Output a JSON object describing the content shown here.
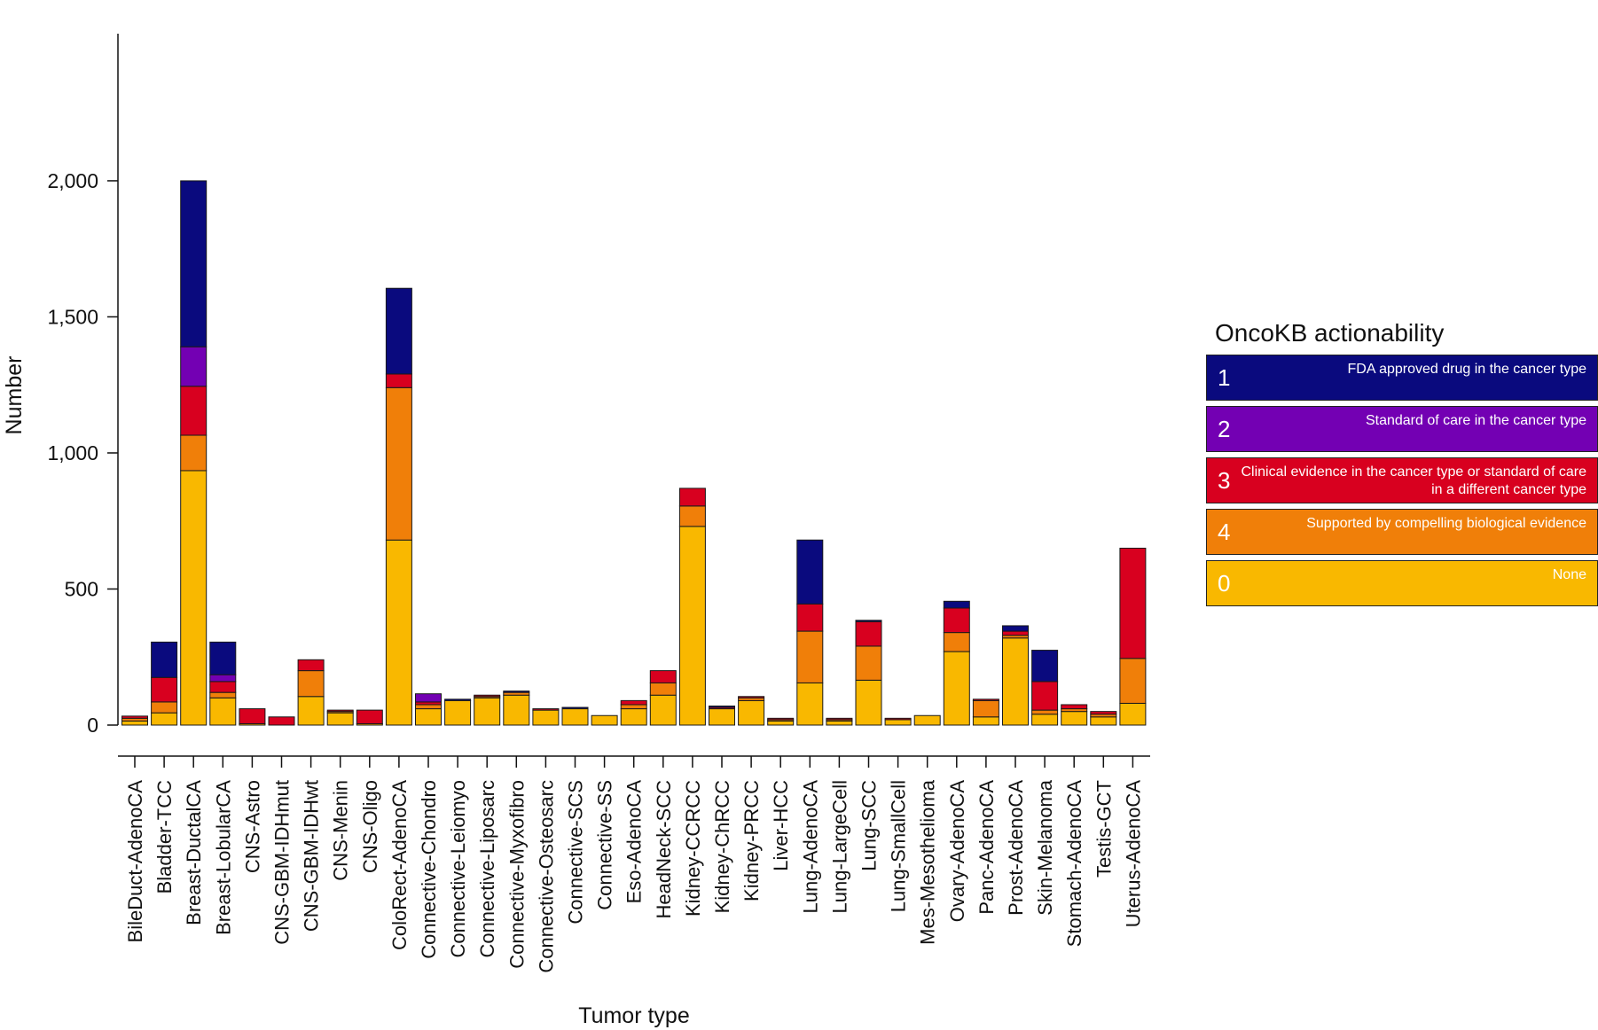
{
  "chart_data": {
    "type": "bar",
    "stacked": true,
    "title": "",
    "xlabel": "Tumor type",
    "ylabel": "Number",
    "ylim": [
      0,
      2420
    ],
    "yticks": [
      0,
      500,
      1000,
      1500,
      2000
    ],
    "ytick_labels": [
      "0",
      "500",
      "1,000",
      "1,500",
      "2,000"
    ],
    "categories": [
      "BileDuct-AdenoCA",
      "Bladder-TCC",
      "Breast-DuctalCA",
      "Breast-LobularCA",
      "CNS-Astro",
      "CNS-GBM-IDHmut",
      "CNS-GBM-IDHwt",
      "CNS-Menin",
      "CNS-Oligo",
      "ColoRect-AdenoCA",
      "Connective-Chondro",
      "Connective-Leiomyo",
      "Connective-Liposarc",
      "Connective-Myxofibro",
      "Connective-Osteosarc",
      "Connective-SCS",
      "Connective-SS",
      "Eso-AdenoCA",
      "HeadNeck-SCC",
      "Kidney-CCRCC",
      "Kidney-ChRCC",
      "Kidney-PRCC",
      "Liver-HCC",
      "Lung-AdenoCA",
      "Lung-LargeCell",
      "Lung-SCC",
      "Lung-SmallCell",
      "Mes-Mesothelioma",
      "Ovary-AdenoCA",
      "Panc-AdenoCA",
      "Prost-AdenoCA",
      "Skin-Melanoma",
      "Stomach-AdenoCA",
      "Testis-GCT",
      "Uterus-AdenoCA"
    ],
    "series": [
      {
        "name": "0",
        "color": "#f9b800",
        "values": [
          15,
          45,
          935,
          100,
          5,
          0,
          105,
          45,
          5,
          680,
          60,
          90,
          100,
          110,
          55,
          60,
          35,
          60,
          110,
          730,
          60,
          90,
          15,
          155,
          15,
          165,
          20,
          35,
          270,
          30,
          320,
          40,
          50,
          30,
          80
        ]
      },
      {
        "name": "4",
        "color": "#f07f09",
        "values": [
          10,
          40,
          130,
          20,
          0,
          0,
          95,
          5,
          0,
          560,
          15,
          0,
          5,
          10,
          0,
          0,
          0,
          15,
          45,
          75,
          0,
          10,
          5,
          190,
          5,
          125,
          0,
          0,
          70,
          60,
          10,
          15,
          10,
          10,
          165
        ]
      },
      {
        "name": "3",
        "color": "#d8001f",
        "values": [
          8,
          90,
          180,
          40,
          55,
          30,
          40,
          5,
          50,
          50,
          10,
          0,
          5,
          0,
          5,
          0,
          0,
          15,
          45,
          65,
          5,
          5,
          5,
          100,
          5,
          90,
          5,
          0,
          90,
          5,
          15,
          105,
          15,
          10,
          405
        ]
      },
      {
        "name": "2",
        "color": "#7300b3",
        "values": [
          0,
          0,
          145,
          25,
          0,
          0,
          0,
          0,
          0,
          0,
          30,
          0,
          0,
          0,
          0,
          0,
          0,
          0,
          0,
          0,
          0,
          0,
          0,
          0,
          0,
          0,
          0,
          0,
          0,
          0,
          0,
          0,
          0,
          0,
          0
        ]
      },
      {
        "name": "1",
        "color": "#0a0a7e",
        "values": [
          0,
          130,
          610,
          120,
          0,
          0,
          0,
          0,
          0,
          315,
          0,
          5,
          0,
          5,
          0,
          5,
          0,
          0,
          0,
          0,
          5,
          0,
          0,
          235,
          0,
          5,
          0,
          0,
          25,
          0,
          20,
          115,
          0,
          0,
          0
        ]
      }
    ],
    "legend_position": "right"
  },
  "legend": {
    "title": "OncoKB actionability",
    "items": [
      {
        "num": "1",
        "color": "#0a0a7e",
        "desc": "FDA approved drug in the cancer type"
      },
      {
        "num": "2",
        "color": "#7300b3",
        "desc": "Standard of care in the cancer type"
      },
      {
        "num": "3",
        "color": "#d8001f",
        "desc": "Clinical evidence in the cancer type or standard of care in a different cancer type"
      },
      {
        "num": "4",
        "color": "#f07f09",
        "desc": "Supported by compelling biological evidence"
      },
      {
        "num": "0",
        "color": "#f9b800",
        "desc": "None"
      }
    ]
  }
}
